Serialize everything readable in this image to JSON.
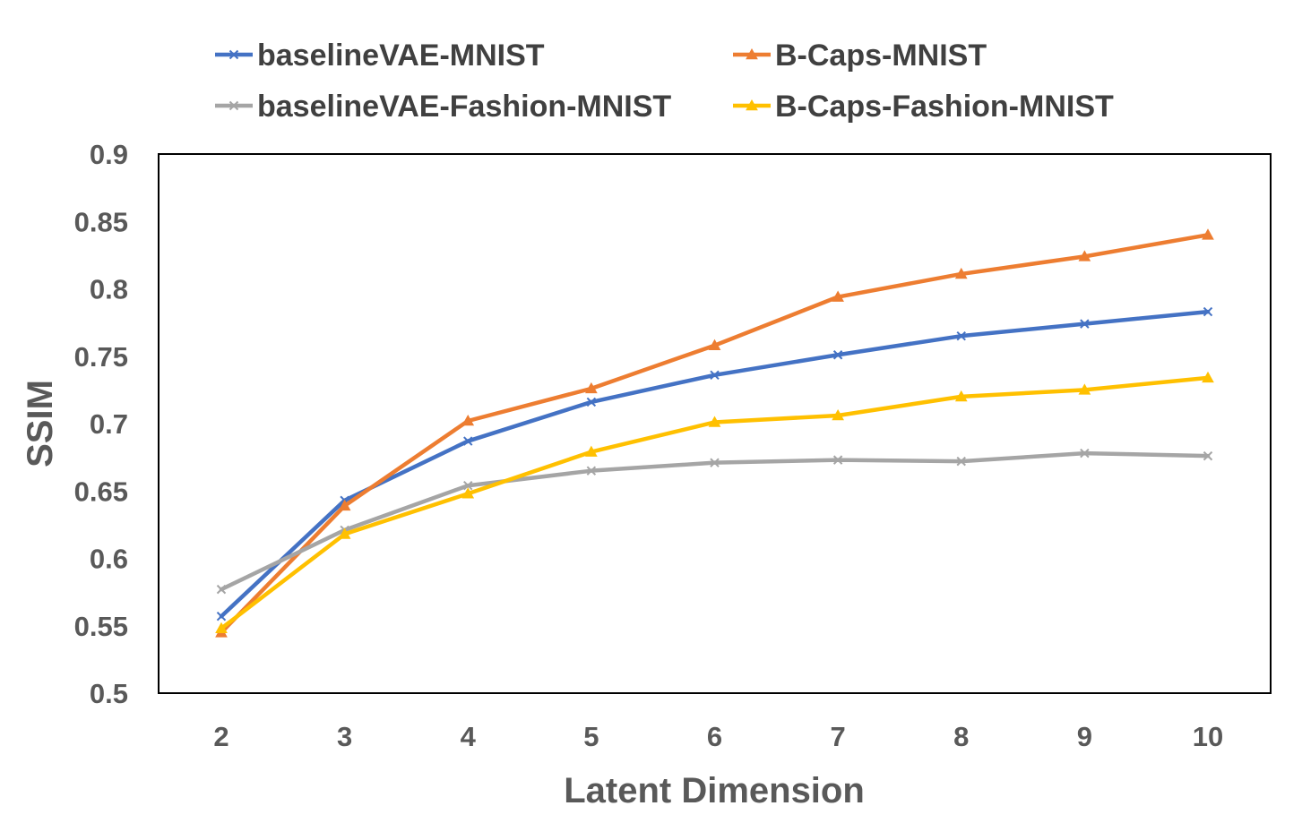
{
  "chart_data": {
    "type": "line",
    "title": "",
    "xlabel": "Latent Dimension",
    "ylabel": "SSIM",
    "x": [
      2,
      3,
      4,
      5,
      6,
      7,
      8,
      9,
      10
    ],
    "x_tick_labels": [
      "2",
      "3",
      "4",
      "5",
      "6",
      "7",
      "8",
      "9",
      "10"
    ],
    "ylim": [
      0.5,
      0.9
    ],
    "y_ticks": [
      0.5,
      0.55,
      0.6,
      0.65,
      0.7,
      0.75,
      0.8,
      0.85,
      0.9
    ],
    "y_tick_labels": [
      "0.5",
      "0.55",
      "0.6",
      "0.65",
      "0.7",
      "0.75",
      "0.8",
      "0.85",
      "0.9"
    ],
    "grid": false,
    "legend_position": "top",
    "series": [
      {
        "name": "baselineVAE-MNIST",
        "color": "#4472C4",
        "marker": "x",
        "values": [
          0.557,
          0.643,
          0.687,
          0.716,
          0.736,
          0.751,
          0.765,
          0.774,
          0.783
        ]
      },
      {
        "name": "B-Caps-MNIST",
        "color": "#ED7D31",
        "marker": "triangle",
        "values": [
          0.545,
          0.639,
          0.702,
          0.726,
          0.758,
          0.794,
          0.811,
          0.824,
          0.84
        ]
      },
      {
        "name": "baselineVAE-Fashion-MNIST",
        "color": "#A5A5A5",
        "marker": "x",
        "values": [
          0.577,
          0.621,
          0.654,
          0.665,
          0.671,
          0.673,
          0.672,
          0.678,
          0.676
        ]
      },
      {
        "name": "B-Caps-Fashion-MNIST",
        "color": "#FFC000",
        "marker": "triangle",
        "values": [
          0.548,
          0.618,
          0.648,
          0.679,
          0.701,
          0.706,
          0.72,
          0.725,
          0.734
        ]
      }
    ]
  }
}
